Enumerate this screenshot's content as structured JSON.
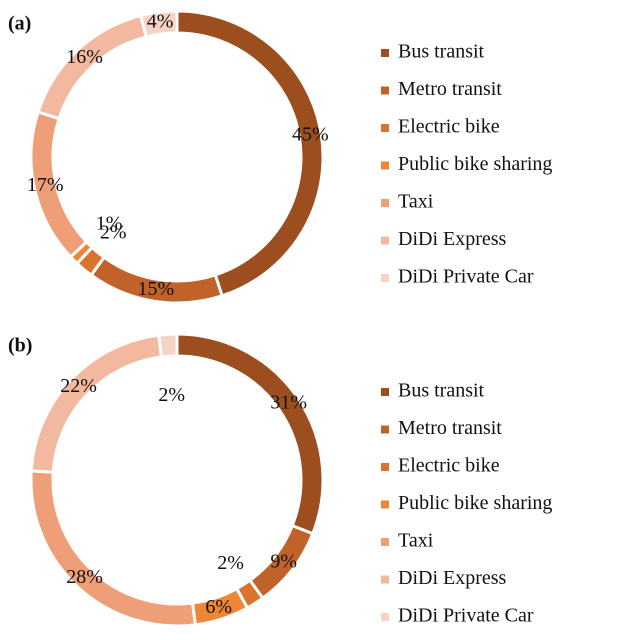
{
  "chart_data": [
    {
      "type": "pie",
      "donut": true,
      "title": "(a)",
      "categories": [
        "Bus transit",
        "Metro transit",
        "Electric bike",
        "Public bike sharing",
        "Taxi",
        "DiDi Express",
        "DiDi Private Car"
      ],
      "values": [
        45,
        15,
        2,
        1,
        17,
        16,
        4
      ],
      "value_labels": [
        "45%",
        "15%",
        "2%",
        "1%",
        "17%",
        "16%",
        "4%"
      ],
      "colors": [
        "#9c4e1e",
        "#c0622a",
        "#d9732e",
        "#ee8636",
        "#ef9f78",
        "#f3b8a0",
        "#f7d3c5"
      ]
    },
    {
      "type": "pie",
      "donut": true,
      "title": "(b)",
      "categories": [
        "Bus transit",
        "Metro transit",
        "Electric bike",
        "Public bike sharing",
        "Taxi",
        "DiDi Express",
        "DiDi Private Car"
      ],
      "values": [
        31,
        9,
        2,
        6,
        28,
        22,
        2
      ],
      "value_labels": [
        "31%",
        "9%",
        "2%",
        "6%",
        "28%",
        "22%",
        "2%"
      ],
      "colors": [
        "#9c4e1e",
        "#c0622a",
        "#d9732e",
        "#ee8636",
        "#ef9f78",
        "#f3b8a0",
        "#f7d3c5"
      ]
    }
  ]
}
